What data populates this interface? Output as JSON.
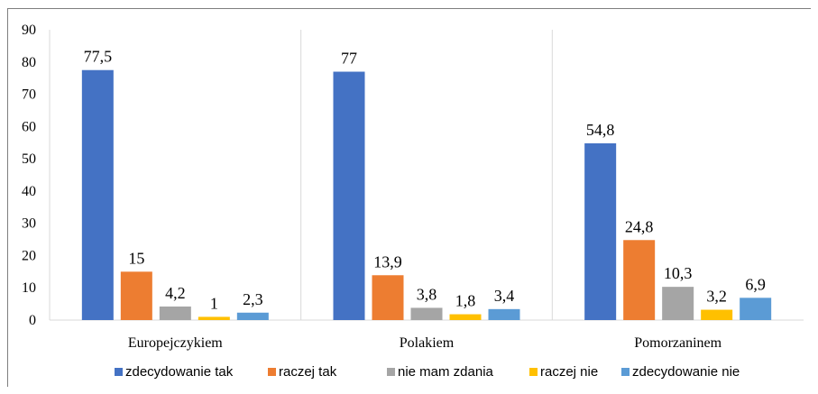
{
  "chart_data": {
    "type": "bar",
    "categories": [
      "Europejczykiem",
      "Polakiem",
      "Pomorzaninem"
    ],
    "series": [
      {
        "name": "zdecydowanie tak",
        "color": "#4472C4",
        "values": [
          77.5,
          77,
          54.8
        ],
        "labels": [
          "77,5",
          "77",
          "54,8"
        ]
      },
      {
        "name": "raczej tak",
        "color": "#ED7D31",
        "values": [
          15,
          13.9,
          24.8
        ],
        "labels": [
          "15",
          "13,9",
          "24,8"
        ]
      },
      {
        "name": "nie mam zdania",
        "color": "#A5A5A5",
        "values": [
          4.2,
          3.8,
          10.3
        ],
        "labels": [
          "4,2",
          "3,8",
          "10,3"
        ]
      },
      {
        "name": "raczej nie",
        "color": "#FFC000",
        "values": [
          1,
          1.8,
          3.2
        ],
        "labels": [
          "1",
          "1,8",
          "3,2"
        ]
      },
      {
        "name": "zdecydowanie nie",
        "color": "#5B9BD5",
        "values": [
          2.3,
          3.4,
          6.9
        ],
        "labels": [
          "2,3",
          "3,4",
          "6,9"
        ]
      }
    ],
    "ylim": [
      0,
      90
    ],
    "yticks": [
      "0",
      "10",
      "20",
      "30",
      "40",
      "50",
      "60",
      "70",
      "80",
      "90"
    ],
    "grid": "vertical category separators",
    "legend": "bottom"
  }
}
